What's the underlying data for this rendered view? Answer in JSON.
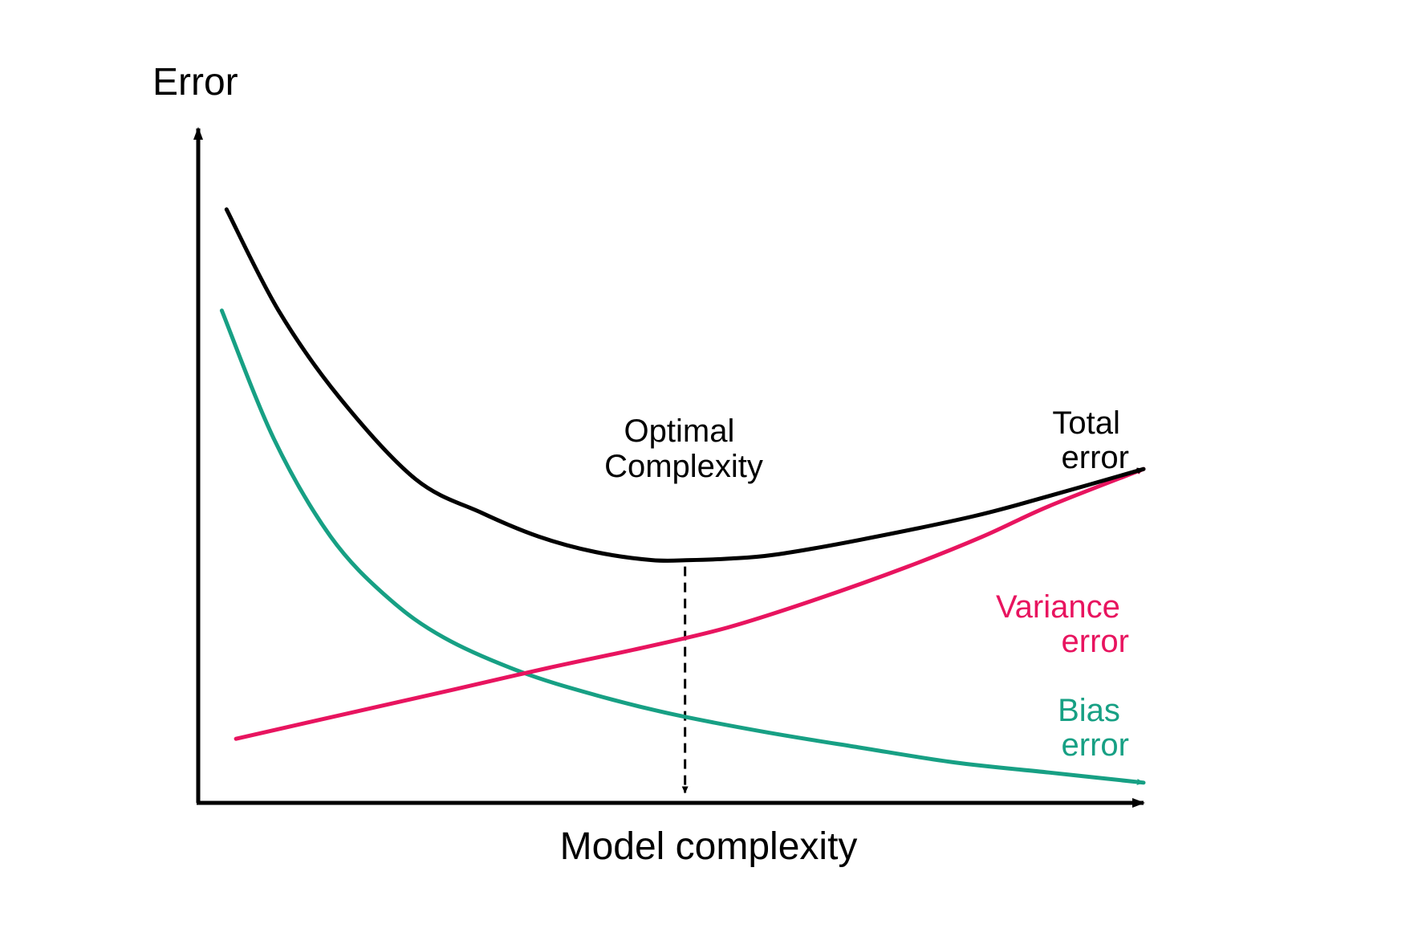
{
  "chart_data": {
    "type": "line",
    "title": "",
    "xlabel": "Model complexity",
    "ylabel": "Error",
    "xlim": [
      0,
      10
    ],
    "ylim": [
      0,
      10
    ],
    "grid": false,
    "legend": "none",
    "series": [
      {
        "name": "Total error",
        "label_lines": [
          "Total",
          "error"
        ],
        "color": "#000000",
        "x": [
          0.3,
          0.85,
          1.5,
          2.3,
          3.0,
          3.6,
          4.2,
          4.8,
          5.2,
          5.6,
          6.1,
          7.0,
          8.2,
          9.0,
          10.0
        ],
        "y": [
          8.8,
          7.3,
          6.0,
          4.8,
          4.3,
          3.95,
          3.72,
          3.6,
          3.6,
          3.62,
          3.68,
          3.9,
          4.25,
          4.55,
          4.95
        ]
      },
      {
        "name": "Variance error",
        "label_lines": [
          "Variance",
          "error"
        ],
        "color": "#e8145f",
        "x": [
          0.4,
          1.5,
          2.7,
          3.7,
          4.7,
          5.6,
          6.5,
          7.5,
          8.3,
          9.0,
          10.0
        ],
        "y": [
          0.95,
          1.3,
          1.68,
          2.0,
          2.3,
          2.6,
          3.0,
          3.5,
          3.95,
          4.4,
          4.95
        ]
      },
      {
        "name": "Bias error",
        "label_lines": [
          "Bias",
          "error"
        ],
        "color": "#17a084",
        "x": [
          0.25,
          0.8,
          1.4,
          2.0,
          2.6,
          3.4,
          4.2,
          5.0,
          6.0,
          7.0,
          8.0,
          9.0,
          10.0
        ],
        "y": [
          7.3,
          5.4,
          3.95,
          3.05,
          2.45,
          1.95,
          1.6,
          1.32,
          1.05,
          0.82,
          0.6,
          0.45,
          0.3
        ]
      }
    ],
    "annotation": {
      "lines": [
        "Optimal",
        "Complexity"
      ],
      "x": 5.15,
      "y_from": 3.6,
      "y_to": 0.15,
      "style": "dashed-arrow"
    }
  }
}
